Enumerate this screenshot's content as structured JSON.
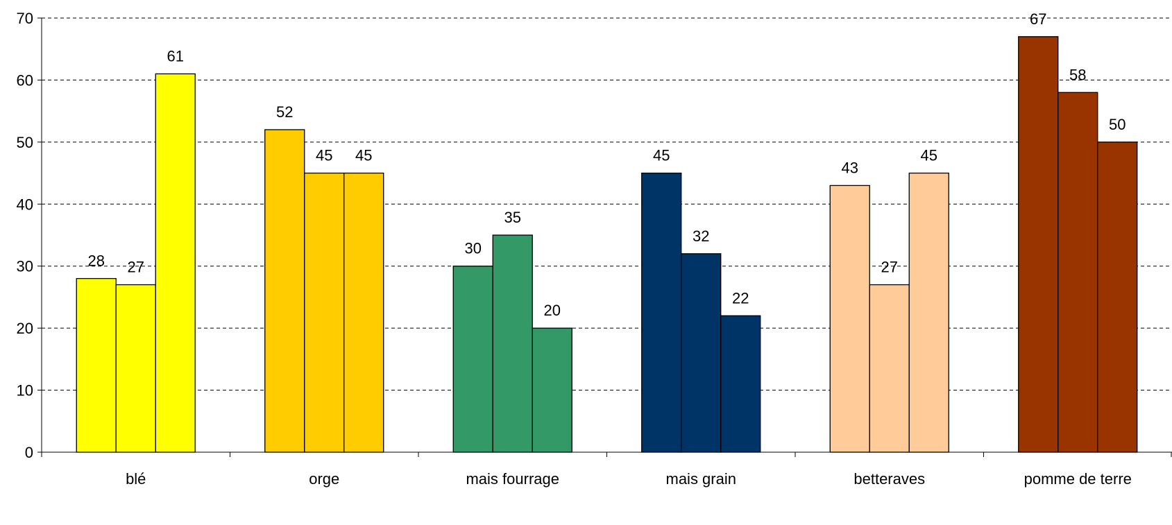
{
  "chart_data": {
    "type": "bar",
    "title": "",
    "xlabel": "",
    "ylabel": "",
    "ylim": [
      0,
      70
    ],
    "yticks": [
      0,
      10,
      20,
      30,
      40,
      50,
      60,
      70
    ],
    "grid": true,
    "legend": "none",
    "categories": [
      "blé",
      "orge",
      "mais fourrage",
      "mais grain",
      "betteraves",
      "pomme de terre"
    ],
    "category_colors": [
      "#FFFF00",
      "#FFCC00",
      "#339966",
      "#003366",
      "#FFCC99",
      "#993300"
    ],
    "series": [
      {
        "values": [
          28,
          52,
          30,
          45,
          43,
          67
        ]
      },
      {
        "values": [
          27,
          45,
          35,
          32,
          27,
          58
        ]
      },
      {
        "values": [
          61,
          45,
          20,
          22,
          45,
          50
        ]
      }
    ]
  }
}
